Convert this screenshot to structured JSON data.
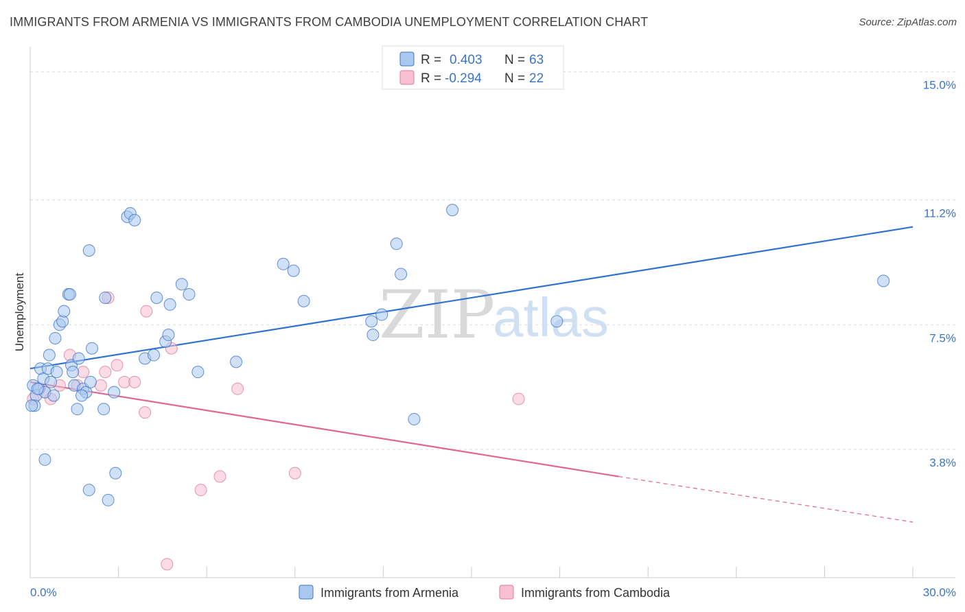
{
  "header": {
    "title": "IMMIGRANTS FROM ARMENIA VS IMMIGRANTS FROM CAMBODIA UNEMPLOYMENT CORRELATION CHART",
    "source": "Source: ZipAtlas.com"
  },
  "watermark": {
    "zip": "ZIP",
    "atlas": "atlas"
  },
  "chart_data": {
    "type": "scatter",
    "title": "IMMIGRANTS FROM ARMENIA VS IMMIGRANTS FROM CAMBODIA UNEMPLOYMENT CORRELATION CHART",
    "xlabel": "",
    "ylabel": "Unemployment",
    "xlim": [
      0,
      30
    ],
    "ylim": [
      0,
      15.5
    ],
    "x_tick_labels": [
      "0.0%",
      "30.0%"
    ],
    "y_ticks": [
      {
        "value": 3.8,
        "label": "3.8%"
      },
      {
        "value": 7.5,
        "label": "7.5%"
      },
      {
        "value": 11.2,
        "label": "11.2%"
      },
      {
        "value": 15.0,
        "label": "15.0%"
      }
    ],
    "legend_position": "top-center",
    "colors": {
      "armenia_fill": "#a9c8f0",
      "armenia_stroke": "#3a74c9",
      "armenia_line": "#2f72d0",
      "cambodia_fill": "#f7bfd1",
      "cambodia_stroke": "#e07a9c",
      "cambodia_line": "#e0668f",
      "tick_color": "#3a74c9"
    },
    "series": [
      {
        "name": "Immigrants from Armenia",
        "r_label": "R =",
        "r_value": "0.403",
        "n_label": "N =",
        "n_value": "63",
        "trend": {
          "x0": 0,
          "y0": 6.2,
          "x1": 30,
          "y1": 10.4
        },
        "points": [
          [
            0.1,
            5.7
          ],
          [
            0.2,
            5.4
          ],
          [
            0.15,
            5.1
          ],
          [
            0.3,
            5.6
          ],
          [
            0.35,
            6.2
          ],
          [
            0.45,
            5.9
          ],
          [
            0.5,
            5.5
          ],
          [
            0.6,
            6.2
          ],
          [
            0.65,
            6.6
          ],
          [
            0.7,
            5.8
          ],
          [
            0.8,
            5.4
          ],
          [
            0.85,
            7.1
          ],
          [
            0.9,
            6.1
          ],
          [
            1.0,
            7.5
          ],
          [
            1.1,
            7.6
          ],
          [
            1.15,
            7.9
          ],
          [
            1.3,
            8.4
          ],
          [
            1.35,
            8.4
          ],
          [
            1.4,
            6.3
          ],
          [
            1.45,
            6.1
          ],
          [
            1.5,
            5.7
          ],
          [
            1.6,
            5.0
          ],
          [
            1.65,
            6.5
          ],
          [
            1.8,
            5.6
          ],
          [
            1.9,
            5.5
          ],
          [
            2.0,
            9.7
          ],
          [
            2.05,
            5.8
          ],
          [
            2.1,
            6.8
          ],
          [
            2.5,
            5.0
          ],
          [
            2.55,
            8.3
          ],
          [
            2.85,
            5.5
          ],
          [
            3.3,
            10.7
          ],
          [
            3.4,
            10.8
          ],
          [
            3.55,
            10.6
          ],
          [
            3.9,
            6.5
          ],
          [
            4.2,
            6.6
          ],
          [
            4.3,
            8.3
          ],
          [
            4.6,
            7.0
          ],
          [
            4.7,
            7.2
          ],
          [
            4.75,
            8.1
          ],
          [
            5.15,
            8.7
          ],
          [
            5.4,
            8.4
          ],
          [
            5.7,
            6.1
          ],
          [
            7.0,
            6.4
          ],
          [
            8.6,
            9.3
          ],
          [
            8.95,
            9.1
          ],
          [
            9.3,
            8.2
          ],
          [
            11.6,
            7.6
          ],
          [
            11.65,
            7.2
          ],
          [
            11.95,
            7.8
          ],
          [
            12.45,
            9.9
          ],
          [
            12.6,
            9.0
          ],
          [
            13.05,
            4.7
          ],
          [
            14.35,
            10.9
          ],
          [
            17.9,
            7.6
          ],
          [
            29.0,
            8.8
          ],
          [
            0.5,
            3.5
          ],
          [
            2.0,
            2.6
          ],
          [
            2.65,
            2.3
          ],
          [
            2.9,
            3.1
          ],
          [
            0.05,
            5.1
          ],
          [
            0.25,
            5.6
          ],
          [
            1.75,
            5.4
          ]
        ]
      },
      {
        "name": "Immigrants from Cambodia",
        "r_label": "R =",
        "r_value": "-0.294",
        "n_label": "N =",
        "n_value": "22",
        "trend": {
          "x0": 0,
          "y0": 5.8,
          "x1": 20.0,
          "y1": 3.0
        },
        "trend_dashed": {
          "x0": 20.0,
          "y0": 3.0,
          "x1": 30,
          "y1": 1.65
        },
        "points": [
          [
            0.1,
            5.3
          ],
          [
            0.3,
            5.6
          ],
          [
            0.5,
            5.5
          ],
          [
            0.7,
            5.3
          ],
          [
            1.0,
            5.7
          ],
          [
            1.35,
            6.6
          ],
          [
            1.6,
            5.7
          ],
          [
            1.8,
            6.1
          ],
          [
            2.4,
            5.7
          ],
          [
            2.55,
            6.1
          ],
          [
            2.65,
            8.3
          ],
          [
            2.95,
            6.3
          ],
          [
            3.2,
            5.8
          ],
          [
            3.55,
            5.8
          ],
          [
            3.9,
            4.9
          ],
          [
            3.95,
            7.9
          ],
          [
            4.8,
            6.8
          ],
          [
            5.8,
            2.6
          ],
          [
            6.45,
            3.0
          ],
          [
            7.05,
            5.6
          ],
          [
            9.0,
            3.1
          ],
          [
            16.6,
            5.3
          ]
        ]
      }
    ],
    "extra_points_cambodia_low": [
      [
        4.65,
        0.4
      ]
    ]
  }
}
